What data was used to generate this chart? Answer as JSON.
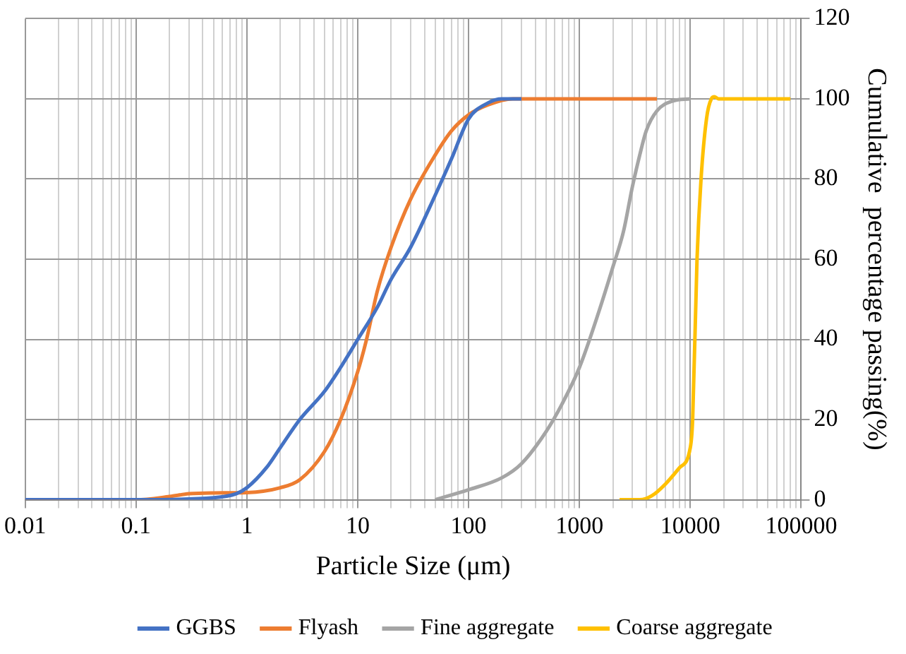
{
  "chart_data": {
    "type": "line",
    "xlabel": "Particle Size (μm)",
    "ylabel": "Cumulative  percentage passing(%)",
    "log": "x",
    "xlim": [
      0.01,
      100000
    ],
    "ylim": [
      0,
      120
    ],
    "xticks": [
      0.01,
      {
        "value": 0.02,
        "label": null
      },
      {
        "value": 0.03,
        "label": null
      },
      {
        "value": 0.04,
        "label": null
      },
      {
        "value": 0.05,
        "label": null
      },
      {
        "value": 0.06,
        "label": null
      },
      {
        "value": 0.07,
        "label": null
      },
      {
        "value": 0.08,
        "label": null
      },
      {
        "value": 0.09,
        "label": null
      },
      0.1,
      {
        "value": 0.2,
        "label": null
      },
      {
        "value": 0.3,
        "label": null
      },
      {
        "value": 0.4,
        "label": null
      },
      {
        "value": 0.5,
        "label": null
      },
      {
        "value": 0.6,
        "label": null
      },
      {
        "value": 0.7,
        "label": null
      },
      {
        "value": 0.8,
        "label": null
      },
      {
        "value": 0.9,
        "label": null
      },
      1,
      {
        "value": 2,
        "label": null
      },
      {
        "value": 3,
        "label": null
      },
      {
        "value": 4,
        "label": null
      },
      {
        "value": 5,
        "label": null
      },
      {
        "value": 6,
        "label": null
      },
      {
        "value": 7,
        "label": null
      },
      {
        "value": 8,
        "label": null
      },
      {
        "value": 9,
        "label": null
      },
      10,
      {
        "value": 20,
        "label": null
      },
      {
        "value": 30,
        "label": null
      },
      {
        "value": 40,
        "label": null
      },
      {
        "value": 50,
        "label": null
      },
      {
        "value": 60,
        "label": null
      },
      {
        "value": 70,
        "label": null
      },
      {
        "value": 80,
        "label": null
      },
      {
        "value": 90,
        "label": null
      },
      100,
      {
        "value": 200,
        "label": null
      },
      {
        "value": 300,
        "label": null
      },
      {
        "value": 400,
        "label": null
      },
      {
        "value": 500,
        "label": null
      },
      {
        "value": 600,
        "label": null
      },
      {
        "value": 700,
        "label": null
      },
      {
        "value": 800,
        "label": null
      },
      {
        "value": 900,
        "label": null
      },
      1000,
      {
        "value": 2000,
        "label": null
      },
      {
        "value": 3000,
        "label": null
      },
      {
        "value": 4000,
        "label": null
      },
      {
        "value": 5000,
        "label": null
      },
      {
        "value": 6000,
        "label": null
      },
      {
        "value": 7000,
        "label": null
      },
      {
        "value": 8000,
        "label": null
      },
      {
        "value": 9000,
        "label": null
      },
      10000,
      {
        "value": 20000,
        "label": null
      },
      {
        "value": 30000,
        "label": null
      },
      {
        "value": 40000,
        "label": null
      },
      {
        "value": 50000,
        "label": null
      },
      {
        "value": 60000,
        "label": null
      },
      {
        "value": 70000,
        "label": null
      },
      {
        "value": 80000,
        "label": null
      },
      {
        "value": 90000,
        "label": null
      },
      100000
    ],
    "yticks": [
      0,
      20,
      40,
      60,
      80,
      100,
      120
    ],
    "grid": true,
    "legend": "bottom",
    "marker": "none",
    "line_style": "solid",
    "series": [
      {
        "name": "GGBS",
        "color": "#4472c4",
        "x": [
          0.01,
          0.1,
          0.5,
          0.8,
          1,
          1.5,
          2,
          3,
          5,
          7,
          10,
          15,
          20,
          30,
          50,
          70,
          100,
          150,
          200,
          300
        ],
        "values": [
          0,
          0,
          0.5,
          1.5,
          3,
          8,
          13,
          20,
          27,
          33,
          40,
          48,
          55,
          63,
          76,
          85,
          95,
          99,
          100,
          100
        ]
      },
      {
        "name": "Flyash",
        "color": "#ed7d31",
        "x": [
          0.01,
          0.1,
          0.2,
          0.3,
          0.5,
          1,
          2,
          3,
          5,
          7,
          10,
          12,
          15,
          20,
          30,
          50,
          70,
          100,
          150,
          250,
          5000
        ],
        "values": [
          0,
          0,
          0.8,
          1.5,
          1.7,
          1.8,
          3,
          5,
          12,
          20,
          32,
          40,
          52,
          63,
          75,
          86,
          92,
          96,
          98.5,
          100,
          100
        ]
      },
      {
        "name": "Fine aggregate",
        "color": "#a5a5a5",
        "x": [
          50,
          100,
          200,
          300,
          500,
          700,
          1000,
          1500,
          2000,
          2500,
          3000,
          3500,
          4000,
          5000,
          7000,
          10000
        ],
        "values": [
          0,
          2.5,
          5.5,
          9,
          17,
          24,
          33,
          47,
          58,
          67,
          78,
          86,
          92,
          97,
          99.5,
          100
        ]
      },
      {
        "name": "Coarse aggregate",
        "color": "#ffc000",
        "x": [
          2300,
          3500,
          4500,
          6000,
          8000,
          10000,
          10500,
          11500,
          12500,
          14000,
          15500,
          16500,
          18000,
          80000
        ],
        "values": [
          0,
          0,
          1,
          4,
          8,
          13,
          20,
          60,
          80,
          95,
          100,
          100.5,
          100,
          100
        ]
      }
    ]
  }
}
